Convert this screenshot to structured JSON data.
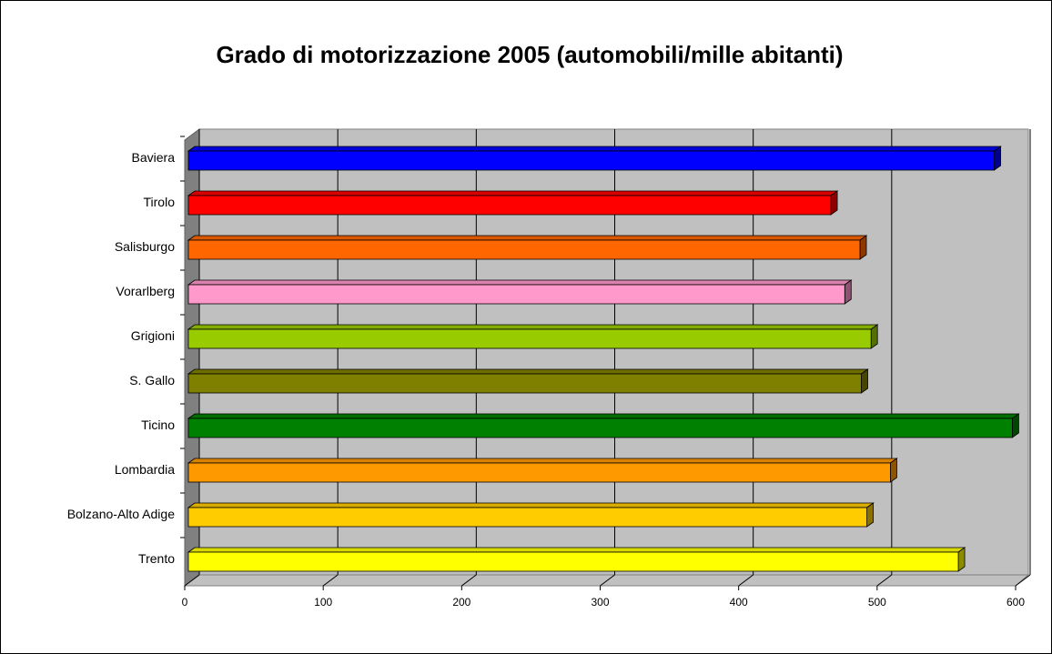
{
  "chart_data": {
    "type": "bar3d",
    "title": "Grado di motorizzazione 2005 (automobili/mille abitanti)",
    "categories": [
      "Baviera",
      "Tirolo",
      "Salisburgo",
      "Vorarlberg",
      "Grigioni",
      "S. Gallo",
      "Ticino",
      "Lombardia",
      "Bolzano-Alto Adige",
      "Trento"
    ],
    "values": [
      582,
      464,
      485,
      474,
      493,
      486,
      595,
      507,
      490,
      556
    ],
    "colors": [
      "#0000ff",
      "#ff0000",
      "#ff6600",
      "#ff99cc",
      "#99cc00",
      "#808000",
      "#008000",
      "#ff9900",
      "#ffcc00",
      "#ffff00"
    ],
    "xlim": [
      0,
      600
    ],
    "xticks": [
      0,
      100,
      200,
      300,
      400,
      500,
      600
    ],
    "grid": true
  }
}
